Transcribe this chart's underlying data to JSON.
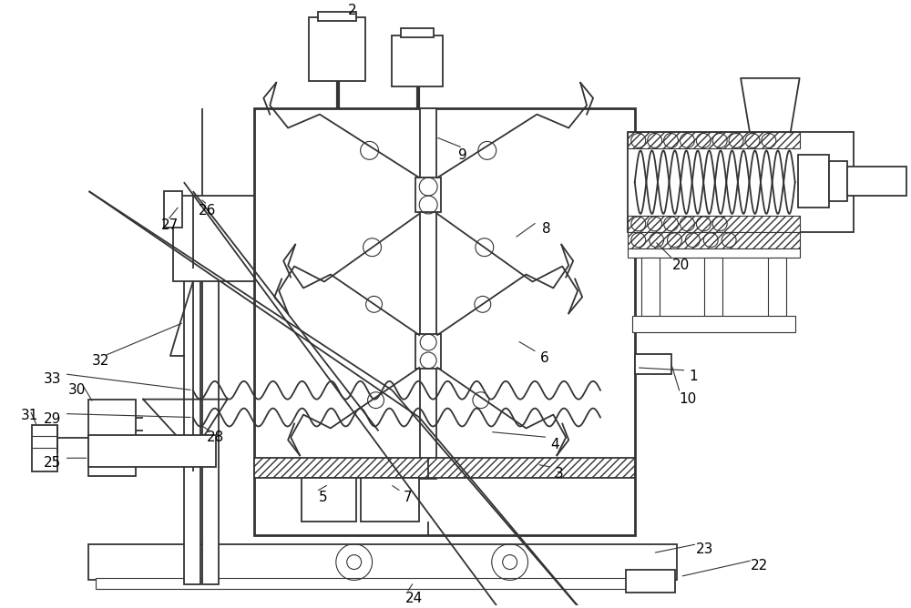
{
  "bg_color": "#ffffff",
  "line_color": "#333333",
  "line_width": 1.3,
  "thin_line": 0.8,
  "fig_width": 10.0,
  "fig_height": 6.68
}
